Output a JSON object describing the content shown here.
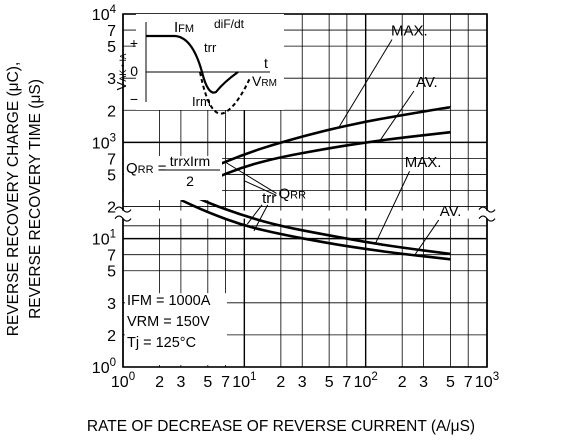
{
  "chart_data": {
    "type": "line",
    "scale": {
      "x": "log",
      "y": "log (two broken ranges)"
    },
    "xlabel": "RATE OF DECREASE OF REVERSE CURRENT  (A/μS)",
    "ylabel_line1": "REVERSE RECOVERY CHARGE  (μC),",
    "ylabel_line2": "REVERSE RECOVERY TIME  (μS)",
    "xlim": [
      1,
      1000
    ],
    "x_ticks": [
      {
        "v": 1,
        "base": "10",
        "exp": "0"
      },
      {
        "v": 2,
        "base": "2",
        "exp": ""
      },
      {
        "v": 3,
        "base": "3",
        "exp": ""
      },
      {
        "v": 5,
        "base": "5",
        "exp": ""
      },
      {
        "v": 7,
        "base": "7",
        "exp": ""
      },
      {
        "v": 10,
        "base": "10",
        "exp": "1"
      },
      {
        "v": 20,
        "base": "2",
        "exp": ""
      },
      {
        "v": 30,
        "base": "3",
        "exp": ""
      },
      {
        "v": 50,
        "base": "5",
        "exp": ""
      },
      {
        "v": 70,
        "base": "7",
        "exp": ""
      },
      {
        "v": 100,
        "base": "10",
        "exp": "2"
      },
      {
        "v": 200,
        "base": "2",
        "exp": ""
      },
      {
        "v": 300,
        "base": "3",
        "exp": ""
      },
      {
        "v": 500,
        "base": "5",
        "exp": ""
      },
      {
        "v": 700,
        "base": "7",
        "exp": ""
      },
      {
        "v": 1000,
        "base": "10",
        "exp": "3"
      }
    ],
    "y_ticks": [
      {
        "row": 0,
        "base": "10",
        "exp": "4"
      },
      {
        "row": 0.5,
        "base": "7",
        "exp": ""
      },
      {
        "row": 1,
        "base": "5",
        "exp": ""
      },
      {
        "row": 2,
        "base": "3",
        "exp": ""
      },
      {
        "row": 3,
        "base": "2",
        "exp": ""
      },
      {
        "row": 4,
        "base": "10",
        "exp": "3"
      },
      {
        "row": 4.5,
        "base": "7",
        "exp": ""
      },
      {
        "row": 5,
        "base": "5",
        "exp": ""
      },
      {
        "row": 6,
        "base": "2",
        "exp": ""
      },
      {
        "row": 7,
        "base": "10",
        "exp": "1"
      },
      {
        "row": 7.5,
        "base": "7",
        "exp": ""
      },
      {
        "row": 8,
        "base": "5",
        "exp": ""
      },
      {
        "row": 9,
        "base": "3",
        "exp": ""
      },
      {
        "row": 10,
        "base": "2",
        "exp": ""
      },
      {
        "row": 11,
        "base": "10",
        "exp": "0"
      }
    ],
    "series": [
      {
        "name": "QRR MAX.",
        "x": [
          3,
          5,
          10,
          20,
          50,
          100,
          200,
          500
        ],
        "y": [
          490,
          620,
          810,
          1000,
          1260,
          1450,
          1630,
          1880
        ]
      },
      {
        "name": "QRR AV.",
        "x": [
          3,
          5,
          10,
          20,
          50,
          100,
          200,
          500
        ],
        "y": [
          400,
          500,
          650,
          770,
          900,
          1000,
          1090,
          1200
        ]
      },
      {
        "name": "trr MAX.",
        "x": [
          3,
          5,
          10,
          20,
          50,
          100,
          200,
          500
        ],
        "y": [
          24,
          19,
          15,
          12.5,
          10.6,
          9.4,
          8.5,
          7.6
        ]
      },
      {
        "name": "trr AV.",
        "x": [
          3,
          5,
          10,
          20,
          50,
          100,
          200,
          500
        ],
        "y": [
          20,
          16,
          12.6,
          10.8,
          9.2,
          8.3,
          7.6,
          6.9
        ]
      }
    ],
    "curve_labels": {
      "qrr_max": "MAX.",
      "qrr_av": "AV.",
      "qrr": "QRR",
      "trr_max": "MAX.",
      "trr_av": "AV.",
      "trr": "trr"
    },
    "formula": {
      "lhs": "QRR =",
      "numerator": "trrxIrm",
      "denominator": "2"
    },
    "conditions": [
      "IFM = 1000A",
      "VRM = 150V",
      "Tj = 125°C"
    ],
    "inset": {
      "ifm": "IFM",
      "didt": "diF/dt",
      "trr": "trr",
      "t": "t",
      "irm": "Irm",
      "vrm": "VRM",
      "zero": "0",
      "plus": "+",
      "minus": "−",
      "vak": "VAK • IA"
    }
  }
}
